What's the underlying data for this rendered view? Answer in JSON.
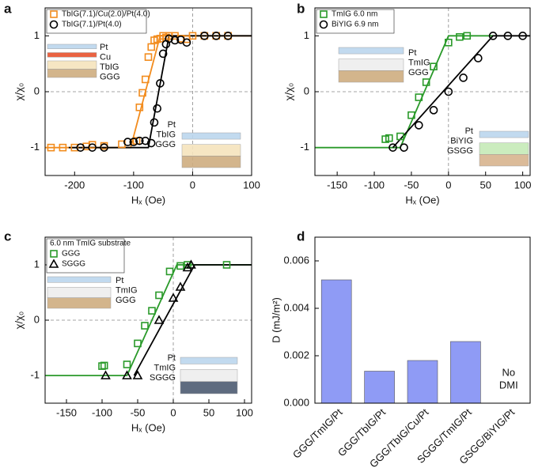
{
  "chart_data": [
    {
      "type": "scatter",
      "panel_label": "a",
      "xlabel": "Hₓ (Oe)",
      "ylabel": "χ/χ₀",
      "xlim": [
        -250,
        100
      ],
      "xticks": [
        -200,
        -100,
        0,
        100
      ],
      "ylim": [
        -1.5,
        1.5
      ],
      "yticks": [
        -1,
        0,
        1
      ],
      "series": [
        {
          "name": "TbIG(7.1)/Cu(2.0)/Pt(4.0)",
          "color": "#f28c1e",
          "marker": "square",
          "x": [
            -240,
            -220,
            -200,
            -180,
            -170,
            -150,
            -120,
            -95,
            -90,
            -85,
            -80,
            -75,
            -70,
            -65,
            -60,
            -55,
            -50,
            -45,
            -40,
            -30,
            -20,
            -10,
            0,
            20,
            40,
            60
          ],
          "y": [
            -1,
            -1,
            -1,
            -0.98,
            -0.95,
            -0.97,
            -0.94,
            -0.88,
            -0.28,
            -0.02,
            0.22,
            0.62,
            0.8,
            0.92,
            0.94,
            0.95,
            1.0,
            0.97,
            1.0,
            1.0,
            0.95,
            0.94,
            1.0,
            1.0,
            1.0,
            1.0
          ]
        },
        {
          "name": "TbIG(7.1)/Pt(4.0)",
          "color": "#000000",
          "marker": "circle",
          "x": [
            -190,
            -170,
            -150,
            -110,
            -100,
            -90,
            -80,
            -70,
            -65,
            -60,
            -55,
            -50,
            -45,
            -40,
            -30,
            -20,
            -10,
            20,
            40,
            60
          ],
          "y": [
            -1,
            -1,
            -1,
            -0.9,
            -0.9,
            -0.88,
            -0.88,
            -0.92,
            -0.55,
            -0.3,
            0.15,
            0.68,
            0.85,
            0.95,
            0.92,
            0.93,
            0.88,
            1.0,
            1.0,
            1.0
          ]
        }
      ],
      "fits": [
        {
          "color": "#f28c1e",
          "x": [
            -250,
            -105,
            -55,
            100
          ],
          "y": [
            -1,
            -1,
            1,
            1
          ]
        },
        {
          "color": "#000000",
          "x": [
            -210,
            -75,
            -40,
            100
          ],
          "y": [
            -1,
            -1,
            1,
            1
          ]
        }
      ],
      "insets": [
        {
          "labels": [
            "Pt",
            "Cu",
            "TbIG",
            "GGG"
          ]
        },
        {
          "labels": [
            "Pt",
            "TbIG",
            "GGG"
          ]
        }
      ]
    },
    {
      "type": "scatter",
      "panel_label": "b",
      "xlabel": "Hₓ (Oe)",
      "ylabel": "χ/χ₀",
      "xlim": [
        -180,
        110
      ],
      "xticks": [
        -150,
        -100,
        -50,
        0,
        50,
        100
      ],
      "ylim": [
        -1.5,
        1.5
      ],
      "yticks": [
        -1,
        0,
        1
      ],
      "series": [
        {
          "name": "TmIG 6.0 nm",
          "color": "#2a9a2a",
          "marker": "square",
          "x": [
            -85,
            -80,
            -65,
            -50,
            -40,
            -30,
            -20,
            0,
            15,
            25
          ],
          "y": [
            -0.85,
            -0.83,
            -0.8,
            -0.42,
            -0.1,
            0.17,
            0.45,
            0.88,
            0.98,
            1.0
          ]
        },
        {
          "name": "BiYIG 6.9 nm",
          "color": "#000000",
          "marker": "circle",
          "x": [
            -75,
            -60,
            -40,
            -20,
            0,
            20,
            40,
            60,
            80,
            100
          ],
          "y": [
            -1,
            -1,
            -0.6,
            -0.33,
            0,
            0.25,
            0.6,
            1,
            1,
            1
          ]
        }
      ],
      "fits": [
        {
          "color": "#2a9a2a",
          "x": [
            -180,
            -65,
            0,
            60
          ],
          "y": [
            -1,
            -1,
            1,
            1
          ]
        },
        {
          "color": "#000000",
          "x": [
            -75,
            60,
            110
          ],
          "y": [
            -1,
            1,
            1
          ]
        }
      ],
      "insets": [
        {
          "labels": [
            "Pt",
            "TmIG",
            "GGG"
          ]
        },
        {
          "labels": [
            "Pt",
            "BiYIG",
            "GSGG"
          ]
        }
      ]
    },
    {
      "type": "scatter",
      "panel_label": "c",
      "xlabel": "Hₓ (Oe)",
      "ylabel": "χ/χ₀",
      "legend_title": "6.0 nm TmIG substrate",
      "xlim": [
        -180,
        110
      ],
      "xticks": [
        -150,
        -100,
        -50,
        0,
        50,
        100
      ],
      "ylim": [
        -1.5,
        1.5
      ],
      "yticks": [
        -1,
        0,
        1
      ],
      "series": [
        {
          "name": "GGG",
          "color": "#2a9a2a",
          "marker": "square",
          "x": [
            -100,
            -97,
            -65,
            -50,
            -40,
            -30,
            -20,
            -5,
            10,
            20,
            75
          ],
          "y": [
            -0.83,
            -0.82,
            -0.8,
            -0.42,
            -0.1,
            0.17,
            0.45,
            0.88,
            0.98,
            1.0,
            1.0
          ]
        },
        {
          "name": "SGGG",
          "color": "#000000",
          "marker": "triangle",
          "x": [
            -95,
            -65,
            -50,
            -20,
            0,
            10,
            20,
            25
          ],
          "y": [
            -1,
            -1,
            -1,
            0,
            0.4,
            0.6,
            0.95,
            1.0
          ]
        }
      ],
      "fits": [
        {
          "color": "#2a9a2a",
          "x": [
            -180,
            -65,
            5,
            110
          ],
          "y": [
            -1,
            -1,
            1,
            1
          ]
        },
        {
          "color": "#000000",
          "x": [
            -55,
            30,
            110
          ],
          "y": [
            -1,
            1,
            1
          ]
        }
      ],
      "insets": [
        {
          "labels": [
            "Pt",
            "TmIG",
            "GGG"
          ]
        },
        {
          "labels": [
            "Pt",
            "TmIG",
            "SGGG"
          ]
        }
      ]
    },
    {
      "type": "bar",
      "panel_label": "d",
      "ylabel": "D (mJ/m²)",
      "color": "#8f9bf5",
      "categories": [
        "GGG/TmIG/Pt",
        "GGG/TbIG/Pt",
        "GGG/TbIG/Cu/Pt",
        "SGGG/TmIG/Pt",
        "GSGG/BiYIG/Pt"
      ],
      "values": [
        0.0052,
        0.00135,
        0.0018,
        0.0026,
        null
      ],
      "annotation": [
        "No",
        "DMI"
      ],
      "ylim": [
        0,
        0.007
      ],
      "yticks": [
        {
          "value": 0,
          "label": "0.000"
        },
        {
          "value": 0.002,
          "label": "0.002"
        },
        {
          "value": 0.004,
          "label": "0.004"
        },
        {
          "value": 0.006,
          "label": "0.006"
        }
      ]
    }
  ]
}
